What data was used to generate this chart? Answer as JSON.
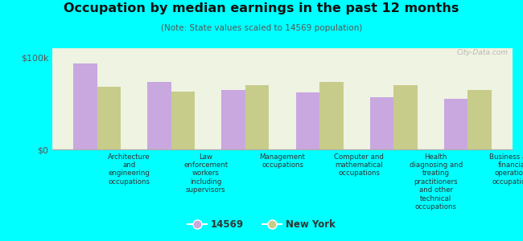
{
  "title": "Occupation by median earnings in the past 12 months",
  "subtitle": "(Note: State values scaled to 14569 population)",
  "background_color": "#00FFFF",
  "plot_bg_color": "#eef3e2",
  "bar_color_14569": "#c9a8e0",
  "bar_color_ny": "#c8cc8a",
  "ylim": [
    0,
    110000
  ],
  "yticks": [
    0,
    100000
  ],
  "ytick_labels": [
    "$0",
    "$100k"
  ],
  "categories": [
    "Architecture\nand\nengineering\noccupations",
    "Law\nenforcement\nworkers\nincluding\nsupervisors",
    "Management\noccupations",
    "Computer and\nmathematical\noccupations",
    "Health\ndiagnosing and\ntreating\npractitioners\nand other\ntechnical\noccupations",
    "Business and\nfinancial\noperations\noccupations"
  ],
  "values_14569": [
    93000,
    73000,
    65000,
    62000,
    57000,
    55000
  ],
  "values_ny": [
    68000,
    63000,
    70000,
    73000,
    70000,
    65000
  ],
  "legend_label_14569": "14569",
  "legend_label_ny": "New York",
  "watermark": "City-Data.com"
}
